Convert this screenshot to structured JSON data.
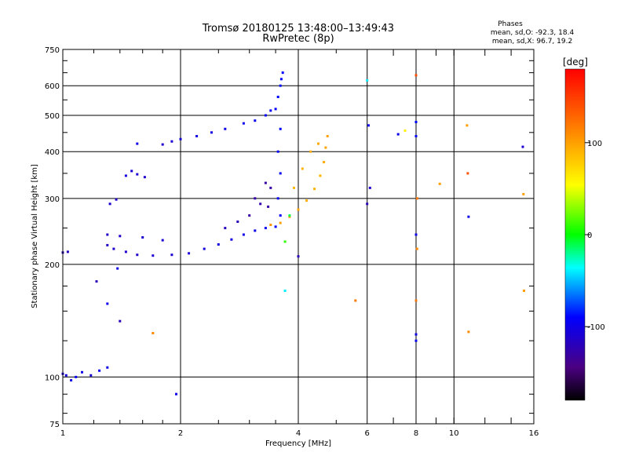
{
  "chart_data": {
    "type": "scatter",
    "title": "Tromsø 20180125 13:48:00–13:49:43",
    "subtitle": "RwPretec (8p)",
    "xlabel": "Frequency [MHz]",
    "ylabel": "Stationary phase Virtual Height [km]",
    "x_scale": "log",
    "y_scale": "log",
    "xlim": [
      1,
      16
    ],
    "ylim": [
      75,
      750
    ],
    "x_ticks": [
      "1",
      "2",
      "4",
      "6",
      "8",
      "10",
      "16"
    ],
    "x_tick_values": [
      1,
      2,
      4,
      6,
      8,
      10,
      16
    ],
    "y_ticks": [
      "75",
      "100",
      "200",
      "300",
      "400",
      "500",
      "600",
      "750"
    ],
    "y_tick_values": [
      75,
      100,
      200,
      300,
      400,
      500,
      600,
      750
    ],
    "grid": true,
    "colorbar": {
      "label": "[deg]",
      "ticks": [
        "100",
        "0",
        "-100"
      ],
      "tick_values": [
        100,
        0,
        -100
      ],
      "range": [
        -180,
        180
      ]
    },
    "phases": {
      "title": "Phases",
      "o_stats": "mean, sd,O: -92.3, 18.4",
      "x_stats": "mean, sd,X:  96.7, 19.2"
    },
    "series": [
      {
        "points": [
          [
            1.0,
            102,
            -110
          ],
          [
            1.02,
            101,
            -105
          ],
          [
            1.05,
            98,
            -100
          ],
          [
            1.08,
            100,
            -95
          ],
          [
            1.12,
            103,
            -100
          ],
          [
            1.18,
            101,
            -105
          ],
          [
            1.24,
            104,
            -95
          ],
          [
            1.3,
            106,
            -100
          ],
          [
            1.0,
            215,
            -120
          ],
          [
            1.03,
            216,
            -118
          ],
          [
            1.3,
            225,
            -115
          ],
          [
            1.35,
            220,
            -112
          ],
          [
            1.45,
            216,
            -110
          ],
          [
            1.55,
            212,
            -112
          ],
          [
            1.7,
            211,
            -110
          ],
          [
            1.9,
            212,
            -108
          ],
          [
            2.1,
            214,
            -108
          ],
          [
            2.3,
            220,
            -105
          ],
          [
            2.5,
            226,
            -104
          ],
          [
            2.7,
            233,
            -102
          ],
          [
            2.9,
            240,
            -100
          ],
          [
            3.1,
            246,
            -98
          ],
          [
            3.3,
            250,
            -96
          ],
          [
            3.5,
            252,
            -94
          ],
          [
            1.3,
            240,
            -115
          ],
          [
            1.4,
            238,
            -112
          ],
          [
            1.6,
            236,
            -110
          ],
          [
            1.8,
            232,
            -108
          ],
          [
            1.32,
            290,
            -110
          ],
          [
            1.37,
            298,
            -112
          ],
          [
            1.45,
            345,
            -105
          ],
          [
            1.5,
            355,
            -108
          ],
          [
            1.55,
            348,
            -110
          ],
          [
            1.62,
            342,
            -112
          ],
          [
            1.55,
            420,
            -100
          ],
          [
            1.8,
            418,
            -110
          ],
          [
            1.9,
            426,
            -108
          ],
          [
            2.0,
            432,
            -106
          ],
          [
            2.2,
            440,
            -104
          ],
          [
            2.4,
            450,
            -102
          ],
          [
            2.6,
            460,
            -100
          ],
          [
            2.9,
            476,
            -98
          ],
          [
            3.1,
            484,
            -96
          ],
          [
            3.3,
            500,
            -95
          ],
          [
            3.4,
            515,
            -94
          ],
          [
            3.5,
            520,
            -92
          ],
          [
            3.55,
            560,
            -90
          ],
          [
            3.6,
            600,
            -88
          ],
          [
            3.62,
            625,
            -90
          ],
          [
            3.65,
            650,
            -92
          ],
          [
            3.6,
            460,
            -90
          ],
          [
            3.55,
            400,
            -92
          ],
          [
            3.6,
            350,
            -95
          ],
          [
            3.55,
            300,
            -94
          ],
          [
            3.6,
            270,
            -92
          ],
          [
            3.3,
            330,
            -130
          ],
          [
            3.4,
            320,
            -128
          ],
          [
            3.1,
            300,
            -126
          ],
          [
            3.2,
            290,
            -125
          ],
          [
            3.0,
            270,
            -130
          ],
          [
            3.35,
            285,
            -128
          ],
          [
            2.8,
            260,
            -120
          ],
          [
            2.6,
            250,
            -118
          ],
          [
            3.4,
            255,
            105
          ],
          [
            3.6,
            258,
            100
          ],
          [
            3.8,
            268,
            98
          ],
          [
            4.0,
            280,
            96
          ],
          [
            4.2,
            296,
            94
          ],
          [
            4.4,
            318,
            92
          ],
          [
            4.55,
            345,
            90
          ],
          [
            4.65,
            375,
            95
          ],
          [
            4.7,
            410,
            98
          ],
          [
            4.75,
            440,
            100
          ],
          [
            4.5,
            420,
            96
          ],
          [
            4.3,
            400,
            94
          ],
          [
            4.1,
            360,
            92
          ],
          [
            3.9,
            320,
            88
          ],
          [
            3.8,
            270,
            -10
          ],
          [
            3.7,
            230,
            10
          ],
          [
            6.0,
            620,
            -40
          ],
          [
            6.05,
            470,
            -100
          ],
          [
            6.0,
            290,
            -120
          ],
          [
            6.1,
            320,
            -110
          ],
          [
            7.2,
            445,
            -100
          ],
          [
            7.5,
            455,
            60
          ],
          [
            8.0,
            640,
            140
          ],
          [
            8.0,
            480,
            -90
          ],
          [
            8.0,
            440,
            -95
          ],
          [
            8.05,
            300,
            120
          ],
          [
            8.0,
            240,
            -100
          ],
          [
            8.05,
            220,
            110
          ],
          [
            8.0,
            160,
            120
          ],
          [
            8.0,
            130,
            -100
          ],
          [
            8.0,
            125,
            -95
          ],
          [
            9.2,
            328,
            100
          ],
          [
            10.8,
            470,
            100
          ],
          [
            10.85,
            350,
            140
          ],
          [
            10.9,
            268,
            -100
          ],
          [
            10.9,
            132,
            110
          ],
          [
            15.0,
            412,
            -110
          ],
          [
            15.05,
            308,
            100
          ],
          [
            15.1,
            170,
            100
          ],
          [
            1.38,
            195,
            -100
          ],
          [
            1.22,
            180,
            -120
          ],
          [
            1.3,
            157,
            -100
          ],
          [
            1.4,
            141,
            -120
          ],
          [
            1.95,
            90,
            -100
          ],
          [
            1.7,
            131,
            110
          ],
          [
            4.0,
            210,
            -120
          ],
          [
            3.7,
            170,
            -40
          ],
          [
            5.6,
            160,
            120
          ]
        ]
      }
    ]
  }
}
